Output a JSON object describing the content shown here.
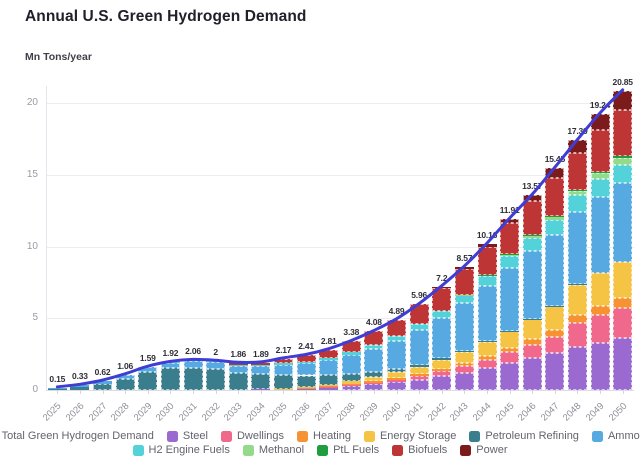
{
  "chart_data": {
    "type": "bar",
    "subtype": "stacked-bars-with-total-line",
    "title": "Annual U.S. Green Hydrogen Demand",
    "ylabel": "Mn Tons/year",
    "xlabel": "",
    "grid": "horizontal",
    "ylim": [
      0,
      21.5
    ],
    "y_ticks": [
      0,
      5,
      10,
      15,
      20
    ],
    "x": [
      2025,
      2026,
      2027,
      2028,
      2029,
      2030,
      2031,
      2032,
      2033,
      2034,
      2035,
      2036,
      2037,
      2038,
      2039,
      2040,
      2041,
      2042,
      2043,
      2044,
      2045,
      2046,
      2047,
      2048,
      2049,
      2050
    ],
    "total": [
      0.15,
      0.33,
      0.62,
      1.06,
      1.59,
      1.92,
      2.06,
      2,
      1.86,
      1.89,
      2.17,
      2.41,
      2.81,
      3.38,
      4.08,
      4.89,
      5.96,
      7.2,
      8.57,
      10.16,
      11.91,
      13.57,
      15.45,
      17.39,
      19.24,
      20.85
    ],
    "total_labels": [
      "0.15",
      "0.33",
      "0.62",
      "1.06",
      "1.59",
      "1.92",
      "2.06",
      "2",
      "1.86",
      "1.89",
      "2.17",
      "2.41",
      "2.81",
      "3.38",
      "4.08",
      "4.89",
      "5.96",
      "7.2",
      "8.57",
      "10.16",
      "11.91",
      "13.57",
      "15.45",
      "17.39",
      "19.24",
      "20.85"
    ],
    "line": {
      "name": "Total Green Hydrogen Demand",
      "color": "#3f3dd4"
    },
    "series": [
      {
        "key": "steel",
        "name": "Steel",
        "color": "#9a6ad0",
        "values": [
          0,
          0,
          0,
          0,
          0,
          0,
          0,
          0,
          0,
          0.05,
          0.08,
          0.12,
          0.18,
          0.28,
          0.4,
          0.55,
          0.72,
          0.95,
          1.2,
          1.5,
          1.85,
          2.2,
          2.55,
          3,
          3.3,
          3.6
        ]
      },
      {
        "key": "dwellings",
        "name": "Dwellings",
        "color": "#f0688c",
        "values": [
          0,
          0,
          0,
          0,
          0,
          0,
          0,
          0,
          0,
          0,
          0,
          0.02,
          0.05,
          0.08,
          0.12,
          0.18,
          0.25,
          0.35,
          0.48,
          0.62,
          0.78,
          0.95,
          1.15,
          1.65,
          1.9,
          2.1
        ]
      },
      {
        "key": "heating",
        "name": "Heating",
        "color": "#f79233",
        "values": [
          0,
          0,
          0,
          0,
          0,
          0,
          0,
          0,
          0,
          0,
          0,
          0.02,
          0.04,
          0.06,
          0.08,
          0.11,
          0.14,
          0.18,
          0.22,
          0.27,
          0.33,
          0.4,
          0.47,
          0.6,
          0.65,
          0.7
        ]
      },
      {
        "key": "energy-storage",
        "name": "Energy Storage",
        "color": "#f5c445",
        "values": [
          0,
          0,
          0,
          0,
          0,
          0,
          0,
          0,
          0,
          0,
          0.02,
          0.05,
          0.1,
          0.18,
          0.28,
          0.38,
          0.48,
          0.6,
          0.75,
          0.95,
          1.15,
          1.4,
          1.65,
          2.1,
          2.3,
          2.5
        ]
      },
      {
        "key": "petroleum-refining",
        "name": "Petroleum Refining",
        "color": "#3a7e8d",
        "values": [
          0.05,
          0.2,
          0.45,
          0.8,
          1.25,
          1.5,
          1.55,
          1.45,
          1.2,
          1.05,
          0.95,
          0.8,
          0.65,
          0.5,
          0.35,
          0.25,
          0.18,
          0.12,
          0.08,
          0.05,
          0.03,
          0.02,
          0.01,
          0.01,
          0,
          0
        ]
      },
      {
        "key": "ammonia",
        "name": "Ammonia",
        "color": "#57a9e2",
        "values": [
          0.1,
          0.13,
          0.17,
          0.26,
          0.34,
          0.38,
          0.45,
          0.48,
          0.5,
          0.55,
          0.7,
          0.85,
          1.05,
          1.35,
          1.65,
          1.95,
          2.42,
          2.8,
          3.3,
          3.85,
          4.35,
          4.7,
          5,
          5.05,
          5.3,
          5.5
        ]
      },
      {
        "key": "h2-engine-fuels",
        "name": "H2 Engine Fuels",
        "color": "#54d2da",
        "values": [
          0,
          0,
          0,
          0,
          0,
          0.04,
          0.06,
          0.07,
          0.06,
          0.07,
          0.1,
          0.12,
          0.16,
          0.2,
          0.27,
          0.34,
          0.42,
          0.5,
          0.6,
          0.72,
          0.85,
          0.95,
          1.05,
          1.15,
          1.25,
          1.3
        ]
      },
      {
        "key": "methanol",
        "name": "Methanol",
        "color": "#93db8b",
        "values": [
          0,
          0,
          0,
          0,
          0,
          0,
          0,
          0,
          0,
          0,
          0,
          0,
          0,
          0,
          0,
          0,
          0,
          0,
          0.02,
          0.05,
          0.09,
          0.14,
          0.2,
          0.3,
          0.4,
          0.5
        ]
      },
      {
        "key": "ptl-fuels",
        "name": "PtL Fuels",
        "color": "#1e9e3f",
        "values": [
          0,
          0,
          0,
          0,
          0,
          0,
          0,
          0,
          0,
          0,
          0,
          0,
          0,
          0,
          0,
          0,
          0,
          0,
          0,
          0.01,
          0.02,
          0.03,
          0.05,
          0.06,
          0.08,
          0.1
        ]
      },
      {
        "key": "biofuels",
        "name": "Biofuels",
        "color": "#bd3535",
        "values": [
          0,
          0,
          0,
          0,
          0,
          0,
          0,
          0,
          0.1,
          0.17,
          0.32,
          0.43,
          0.58,
          0.73,
          0.93,
          1.13,
          1.35,
          1.6,
          1.77,
          1.94,
          2.16,
          2.38,
          2.67,
          2.62,
          2.96,
          3.2
        ]
      },
      {
        "key": "power",
        "name": "Power",
        "color": "#7c1b1b",
        "values": [
          0,
          0,
          0,
          0,
          0,
          0,
          0,
          0,
          0,
          0,
          0,
          0,
          0,
          0,
          0,
          0,
          0,
          0.1,
          0.15,
          0.2,
          0.3,
          0.4,
          0.65,
          0.85,
          1.1,
          1.35
        ]
      }
    ],
    "legend_rows": [
      [
        {
          "key": "total-green-hydrogen-demand",
          "label": "Total Green Hydrogen Demand",
          "color": "#3f3dd4"
        },
        {
          "key": "steel",
          "label": "Steel",
          "color": "#9a6ad0"
        },
        {
          "key": "dwellings",
          "label": "Dwellings",
          "color": "#f0688c"
        },
        {
          "key": "heating",
          "label": "Heating",
          "color": "#f79233"
        },
        {
          "key": "energy-storage",
          "label": "Energy Storage",
          "color": "#f5c445"
        },
        {
          "key": "petroleum-refining",
          "label": "Petroleum Refining",
          "color": "#3a7e8d"
        },
        {
          "key": "ammonia",
          "label": "Ammonia",
          "color": "#57a9e2"
        }
      ],
      [
        {
          "key": "h2-engine-fuels",
          "label": "H2 Engine Fuels",
          "color": "#54d2da"
        },
        {
          "key": "methanol",
          "label": "Methanol",
          "color": "#93db8b"
        },
        {
          "key": "ptl-fuels",
          "label": "PtL Fuels",
          "color": "#1e9e3f"
        },
        {
          "key": "biofuels",
          "label": "Biofuels",
          "color": "#bd3535"
        },
        {
          "key": "power",
          "label": "Power",
          "color": "#7c1b1b"
        }
      ]
    ]
  }
}
